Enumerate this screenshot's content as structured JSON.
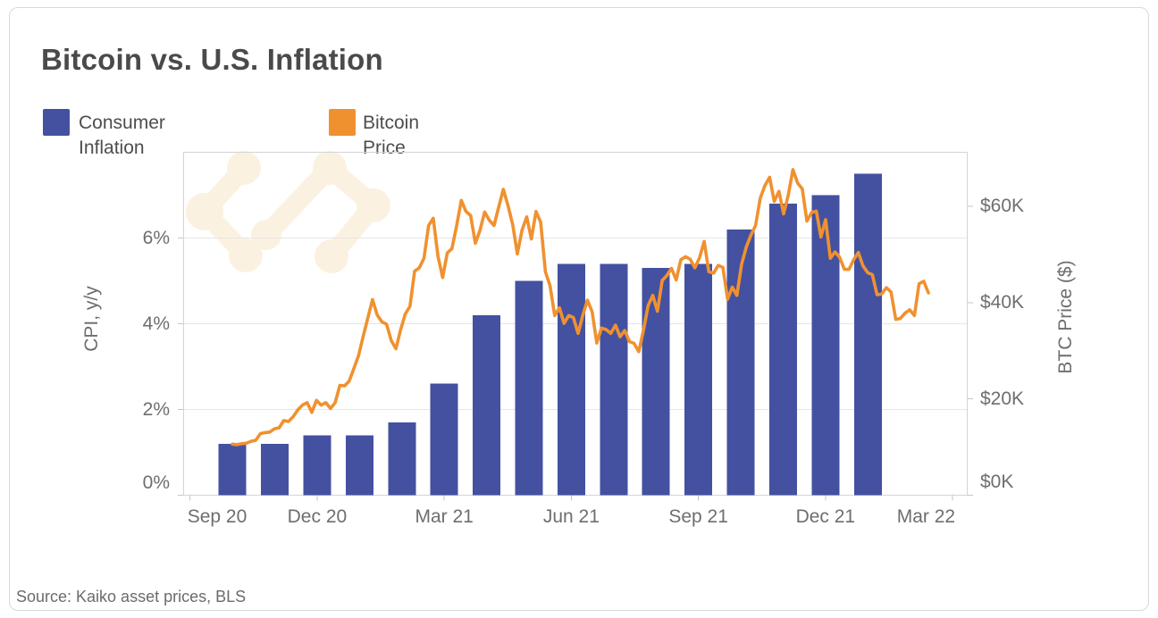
{
  "title": "Bitcoin vs. U.S. Inflation",
  "legend": {
    "items": [
      {
        "label": "Consumer Inflation",
        "color": "#4451A0"
      },
      {
        "label": "Bitcoin Price",
        "color": "#F0912F"
      }
    ]
  },
  "source": {
    "text": "Source: Kaiko asset prices, BLS"
  },
  "colors": {
    "bar": "#4451A0",
    "line": "#F0912F",
    "grid": "#e6e6e6",
    "plot_border": "#d4d4d4",
    "tick_mark": "#c6c6c6",
    "watermark": "#fbf1e0"
  },
  "chart_data": {
    "type": "combo",
    "title": "Bitcoin vs. U.S. Inflation",
    "grid": "horizontal-only",
    "legend_position": "top-left",
    "x_axis": {
      "tick_labels": [
        "Sep 20",
        "Dec 20",
        "Mar 21",
        "Jun 21",
        "Sep 21",
        "Dec 21",
        "Mar 22"
      ],
      "tick_spacing": "3 months"
    },
    "y_left": {
      "title": "CPI, y/y",
      "tick_labels": [
        "0%",
        "2%",
        "4%",
        "6%"
      ],
      "tick_values": [
        0,
        2,
        4,
        6
      ],
      "grid_values": [
        2,
        4,
        6
      ],
      "range": [
        0,
        8
      ]
    },
    "y_right": {
      "title": "BTC Price ($)",
      "tick_labels": [
        "$0K",
        "$20K",
        "$40K",
        "$60K"
      ],
      "tick_values": [
        0,
        20,
        40,
        60
      ],
      "range": [
        0,
        71.2
      ]
    },
    "bar_series": {
      "name": "Consumer Inflation",
      "type": "bar",
      "axis": "left",
      "unit": "% CPI year-over-year",
      "categories": [
        "Oct 2020",
        "Nov 2020",
        "Dec 2020",
        "Jan 2021",
        "Feb 2021",
        "Mar 2021",
        "Apr 2021",
        "May 2021",
        "Jun 2021",
        "Jul 2021",
        "Aug 2021",
        "Sep 2021",
        "Oct 2021",
        "Nov 2021",
        "Dec 2021",
        "Jan 2022"
      ],
      "values": [
        1.2,
        1.2,
        1.4,
        1.4,
        1.7,
        2.6,
        4.2,
        5.0,
        5.4,
        5.4,
        5.3,
        5.4,
        6.2,
        6.8,
        7.0,
        7.5
      ]
    },
    "line_series": {
      "name": "Bitcoin Price",
      "type": "line",
      "axis": "right",
      "unit": "USD thousands",
      "start": "2020-10-01",
      "end": "2022-02-14",
      "sampling": "uniform, ~3.4 days per point",
      "values": [
        10.6,
        10.5,
        10.7,
        10.8,
        11.2,
        11.4,
        12.8,
        13.0,
        13.1,
        13.8,
        14.0,
        15.5,
        15.3,
        16.3,
        17.7,
        18.7,
        19.2,
        17.2,
        19.7,
        18.7,
        19.2,
        18.0,
        19.2,
        22.8,
        22.7,
        23.7,
        26.3,
        29.0,
        33.0,
        36.8,
        40.6,
        37.4,
        36.0,
        35.5,
        32.1,
        30.4,
        34.3,
        37.6,
        39.2,
        46.5,
        47.2,
        49.2,
        56.0,
        57.5,
        49.7,
        45.2,
        50.3,
        51.2,
        55.9,
        61.2,
        58.9,
        58.1,
        52.3,
        55.0,
        58.8,
        57.1,
        56.0,
        59.8,
        63.5,
        60.1,
        56.2,
        50.1,
        55.0,
        57.8,
        53.2,
        58.9,
        56.7,
        46.4,
        43.5,
        37.3,
        38.9,
        35.7,
        37.3,
        36.9,
        33.6,
        37.3,
        40.5,
        38.1,
        31.6,
        34.7,
        34.4,
        33.6,
        35.3,
        32.9,
        34.2,
        31.9,
        31.5,
        29.8,
        34.3,
        39.4,
        41.5,
        38.2,
        44.6,
        45.6,
        47.1,
        44.7,
        48.9,
        49.5,
        49.0,
        47.2,
        49.3,
        52.7,
        46.4,
        46.1,
        47.7,
        47.3,
        40.7,
        43.2,
        41.5,
        47.9,
        51.5,
        54.0,
        56.0,
        61.7,
        64.3,
        66.0,
        61.0,
        63.1,
        58.4,
        62.3,
        67.6,
        64.8,
        63.6,
        56.9,
        58.7,
        59.0,
        53.6,
        57.2,
        49.2,
        50.5,
        49.4,
        46.9,
        46.9,
        48.9,
        50.4,
        47.6,
        46.2,
        45.8,
        41.6,
        41.8,
        43.1,
        42.2,
        36.5,
        36.7,
        37.8,
        38.5,
        37.3,
        43.9,
        44.4,
        42.0
      ]
    }
  }
}
